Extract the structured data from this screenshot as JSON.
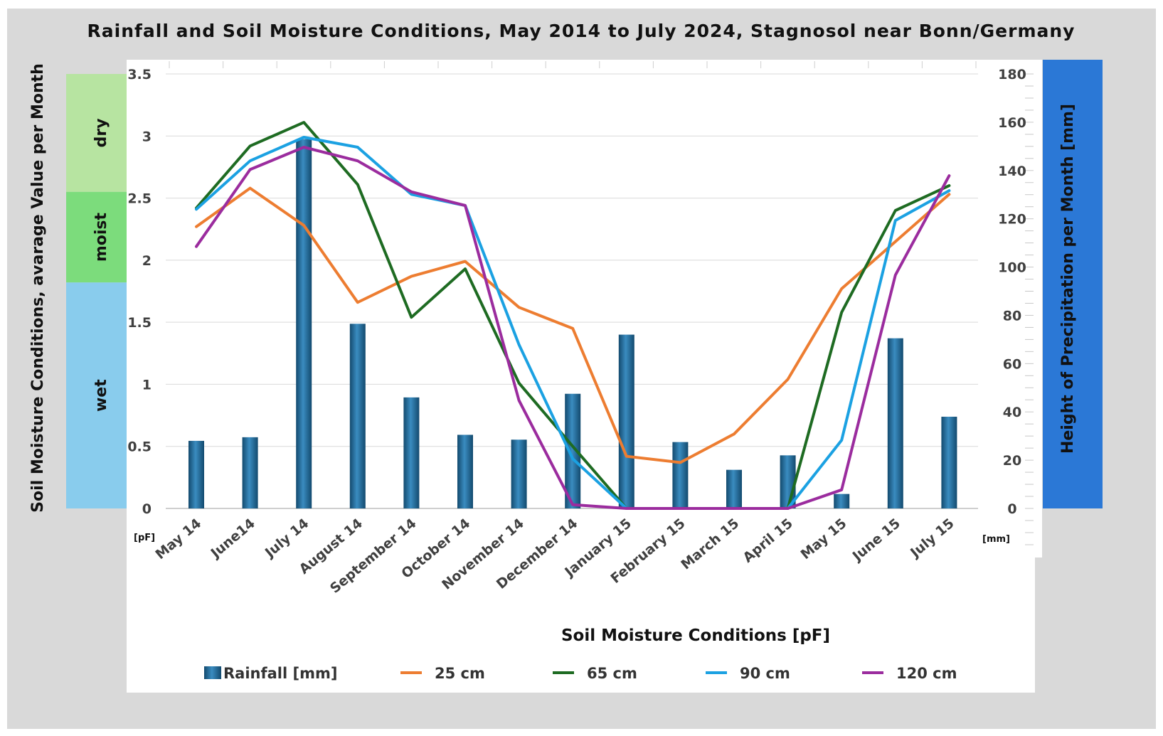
{
  "colors": {
    "bar": "#1f5f8b",
    "bar_light": "#4a9ac9",
    "series_25": "#ed7d31",
    "series_65": "#1e6b22",
    "series_90": "#1ba1e2",
    "series_120": "#9b2c9e",
    "band_dry": "#b7e4a1",
    "band_moist": "#7cdc7c",
    "band_wet": "#89cced",
    "right_panel": "#2b78d6",
    "frame": "#d9d9d9"
  },
  "chart_data": {
    "type": "bar+line",
    "title": "Rainfall and Soil Moisture Conditions, May 2014 to July 2024, Stagnosol near Bonn/Germany",
    "categories": [
      "May 14",
      "June14",
      "July 14",
      "August 14",
      "September 14",
      "October 14",
      "November 14",
      "December 14",
      "January 15",
      "February 15",
      "March 15",
      "April 15",
      "May 15",
      "June 15",
      "July 15"
    ],
    "y_left": {
      "label": "Soil Moisture Conditions, avarage Value per Month",
      "unit": "[pF]",
      "range": [
        0,
        3.5
      ],
      "ticks": [
        "0",
        "0.5",
        "1",
        "1.5",
        "2",
        "2.5",
        "3",
        "3.5"
      ]
    },
    "y_right": {
      "label": "Height of Precipitation per Month [mm]",
      "unit": "[mm]",
      "range": [
        0,
        180
      ],
      "ticks": [
        "0",
        "20",
        "40",
        "60",
        "80",
        "100",
        "120",
        "140",
        "160",
        "180"
      ]
    },
    "xlabel": "Soil Moisture Conditions [pF]",
    "bands": [
      {
        "label": "dry",
        "from": 2.55,
        "to": 3.5
      },
      {
        "label": "moist",
        "from": 1.82,
        "to": 2.55
      },
      {
        "label": "wet",
        "from": 0,
        "to": 1.82
      }
    ],
    "rainfall": {
      "name": "Rainfall [mm]",
      "values": [
        28,
        29.5,
        153,
        76.5,
        46,
        30.5,
        28.5,
        47.5,
        72,
        27.5,
        16,
        22,
        6,
        70.5,
        38
      ]
    },
    "series": [
      {
        "name": "25 cm",
        "key": "series_25",
        "values": [
          2.27,
          2.58,
          2.28,
          1.66,
          1.87,
          1.99,
          1.62,
          1.45,
          0.42,
          0.37,
          0.6,
          1.04,
          1.77,
          2.15,
          2.53
        ]
      },
      {
        "name": "65 cm",
        "key": "series_65",
        "values": [
          2.42,
          2.92,
          3.11,
          2.61,
          1.54,
          1.93,
          1.01,
          0.5,
          0.0,
          0.0,
          0.0,
          0.0,
          1.58,
          2.4,
          2.6
        ]
      },
      {
        "name": "90 cm",
        "key": "series_90",
        "values": [
          2.41,
          2.8,
          2.99,
          2.91,
          2.53,
          2.44,
          1.32,
          0.4,
          0.0,
          0.0,
          0.0,
          0.0,
          0.55,
          2.32,
          2.56
        ]
      },
      {
        "name": "120 cm",
        "key": "series_120",
        "values": [
          2.11,
          2.73,
          2.91,
          2.8,
          2.55,
          2.44,
          0.87,
          0.03,
          0.0,
          0.0,
          0.0,
          0.0,
          0.15,
          1.88,
          2.68
        ]
      }
    ],
    "legend": [
      "Rainfall [mm]",
      "25 cm",
      "65 cm",
      "90 cm",
      "120 cm"
    ]
  }
}
